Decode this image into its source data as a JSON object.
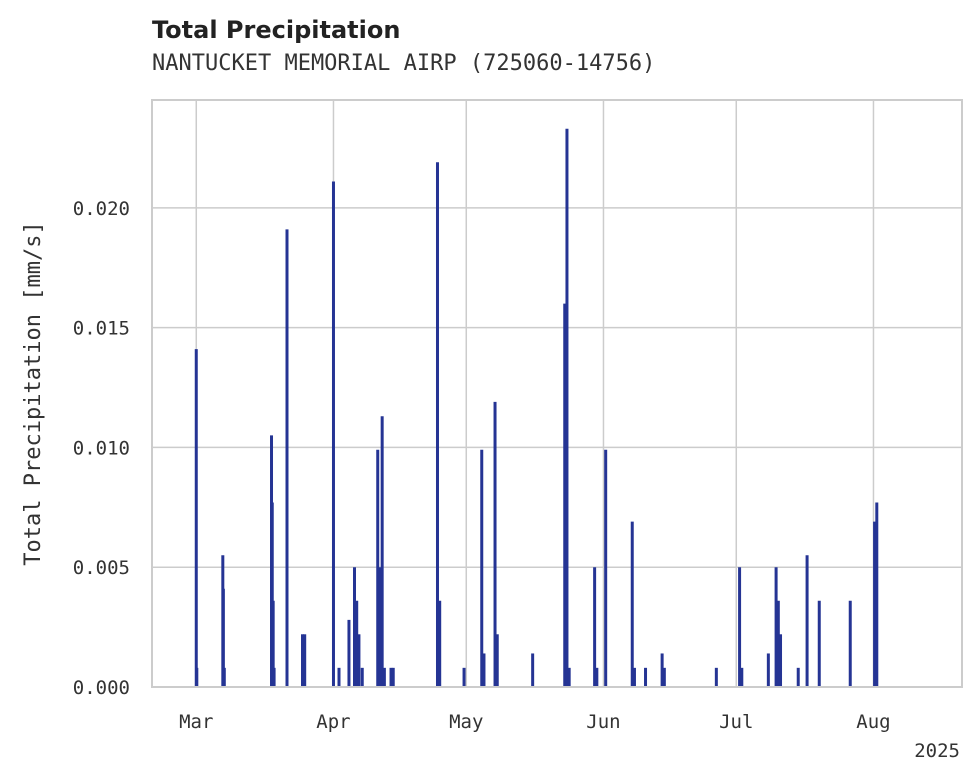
{
  "chart_data": {
    "type": "bar",
    "title": "Total Precipitation",
    "subtitle": "NANTUCKET MEMORIAL AIRP (725060-14756)",
    "ylabel": "Total Precipitation [mm/s]",
    "xlabel": "",
    "year_label": "2025",
    "ylim": [
      0,
      0.0245
    ],
    "xlim": [
      "2025-02-19",
      "2025-08-21"
    ],
    "yticks": [
      0.0,
      0.005,
      0.01,
      0.015,
      0.02
    ],
    "ytick_labels": [
      "0.000",
      "0.005",
      "0.010",
      "0.015",
      "0.020"
    ],
    "xticks": [
      "2025-03-01",
      "2025-04-01",
      "2025-05-01",
      "2025-06-01",
      "2025-07-01",
      "2025-08-01"
    ],
    "xtick_labels": [
      "Mar",
      "Apr",
      "May",
      "Jun",
      "Jul",
      "Aug"
    ],
    "grid": true,
    "bar_color": "#253494",
    "x": [
      "2025-03-01 00:00",
      "2025-03-01 03:00",
      "2025-03-07 00:00",
      "2025-03-07 03:00",
      "2025-03-07 08:00",
      "2025-03-18 00:00",
      "2025-03-18 04:00",
      "2025-03-18 09:00",
      "2025-03-18 14:00",
      "2025-03-21 12:00",
      "2025-03-25 00:00",
      "2025-03-25 12:00",
      "2025-04-01 00:00",
      "2025-04-02 06:00",
      "2025-04-04 12:00",
      "2025-04-05 18:00",
      "2025-04-06 06:00",
      "2025-04-06 18:00",
      "2025-04-07 12:00",
      "2025-04-11 00:00",
      "2025-04-11 12:00",
      "2025-04-12 00:00",
      "2025-04-12 12:00",
      "2025-04-14 00:00",
      "2025-04-14 12:00",
      "2025-04-24 12:00",
      "2025-04-25 00:00",
      "2025-04-30 12:00",
      "2025-05-04 12:00",
      "2025-05-05 00:00",
      "2025-05-07 12:00",
      "2025-05-08 00:00",
      "2025-05-16 00:00",
      "2025-05-23 06:00",
      "2025-05-23 18:00",
      "2025-05-24 06:00",
      "2025-05-30 00:00",
      "2025-05-30 12:00",
      "2025-06-01 12:00",
      "2025-06-07 12:00",
      "2025-06-08 00:00",
      "2025-06-10 12:00",
      "2025-06-14 06:00",
      "2025-06-14 18:00",
      "2025-06-26 12:00",
      "2025-07-01 18:00",
      "2025-07-02 06:00",
      "2025-07-08 06:00",
      "2025-07-10 00:00",
      "2025-07-10 12:00",
      "2025-07-11 00:00",
      "2025-07-15 00:00",
      "2025-07-17 00:00",
      "2025-07-19 18:00",
      "2025-07-26 18:00",
      "2025-08-01 06:00",
      "2025-08-01 18:00"
    ],
    "values": [
      0.0141,
      0.0008,
      0.0055,
      0.0041,
      0.0008,
      0.0105,
      0.0077,
      0.0036,
      0.0008,
      0.0191,
      0.0022,
      0.0022,
      0.0211,
      0.0008,
      0.0028,
      0.005,
      0.0036,
      0.0022,
      0.0008,
      0.0099,
      0.005,
      0.0113,
      0.0008,
      0.0008,
      0.0008,
      0.0219,
      0.0036,
      0.0008,
      0.0099,
      0.0014,
      0.0119,
      0.0022,
      0.0014,
      0.016,
      0.0233,
      0.0008,
      0.005,
      0.0008,
      0.0099,
      0.0069,
      0.0008,
      0.0008,
      0.0014,
      0.0008,
      0.0008,
      0.005,
      0.0008,
      0.0014,
      0.005,
      0.0036,
      0.0022,
      0.0008,
      0.0055,
      0.0036,
      0.0036,
      0.0069,
      0.0077
    ]
  }
}
